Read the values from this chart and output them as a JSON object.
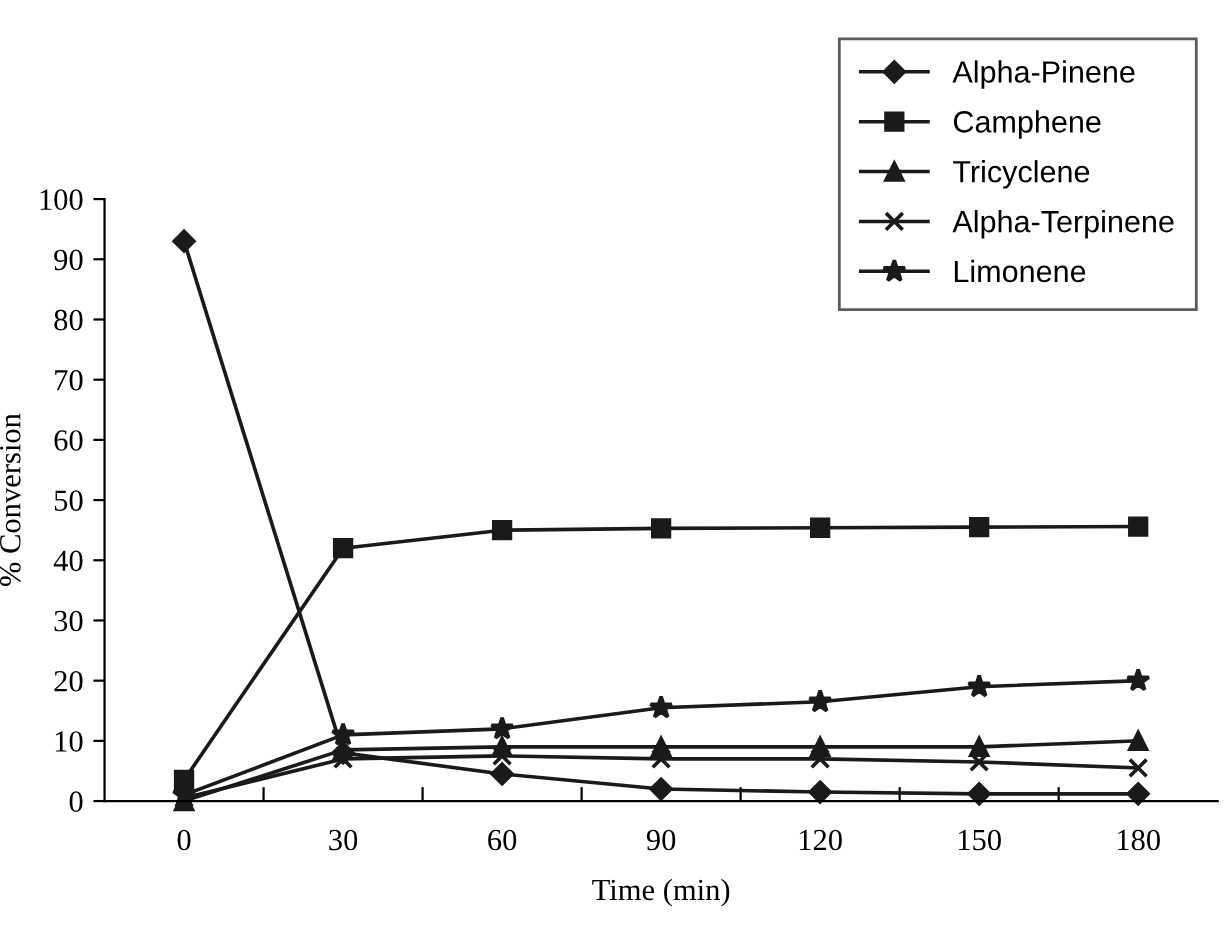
{
  "chart_data": {
    "type": "line",
    "xlabel": "Time (min)",
    "ylabel": "% Conversion",
    "categories": [
      "0",
      "30",
      "60",
      "90",
      "120",
      "150",
      "180"
    ],
    "ylim": [
      0,
      100
    ],
    "yticks": [
      0,
      10,
      20,
      30,
      40,
      50,
      60,
      70,
      80,
      90,
      100
    ],
    "grid": false,
    "legend": "top right",
    "line_style": "solid",
    "series": [
      {
        "name": "Alpha-Pinene",
        "color": "#1a1a1a",
        "marker": "diamond",
        "values": [
          93,
          8,
          4.5,
          2,
          1.5,
          1.2,
          1.2
        ]
      },
      {
        "name": "Camphene",
        "color": "#1a1a1a",
        "marker": "square",
        "values": [
          3.5,
          42,
          45,
          45.3,
          45.4,
          45.5,
          45.6
        ]
      },
      {
        "name": "Tricyclene",
        "color": "#1a1a1a",
        "marker": "triangle",
        "values": [
          0,
          8.5,
          9,
          9,
          9,
          9,
          10
        ]
      },
      {
        "name": "Alpha-Terpinene",
        "color": "#1a1a1a",
        "marker": "cross",
        "values": [
          0.5,
          7,
          7.5,
          7,
          7,
          6.5,
          5.5
        ]
      },
      {
        "name": "Limonene",
        "color": "#1a1a1a",
        "marker": "star",
        "values": [
          1,
          11,
          12,
          15.5,
          16.5,
          19,
          20
        ]
      }
    ]
  }
}
